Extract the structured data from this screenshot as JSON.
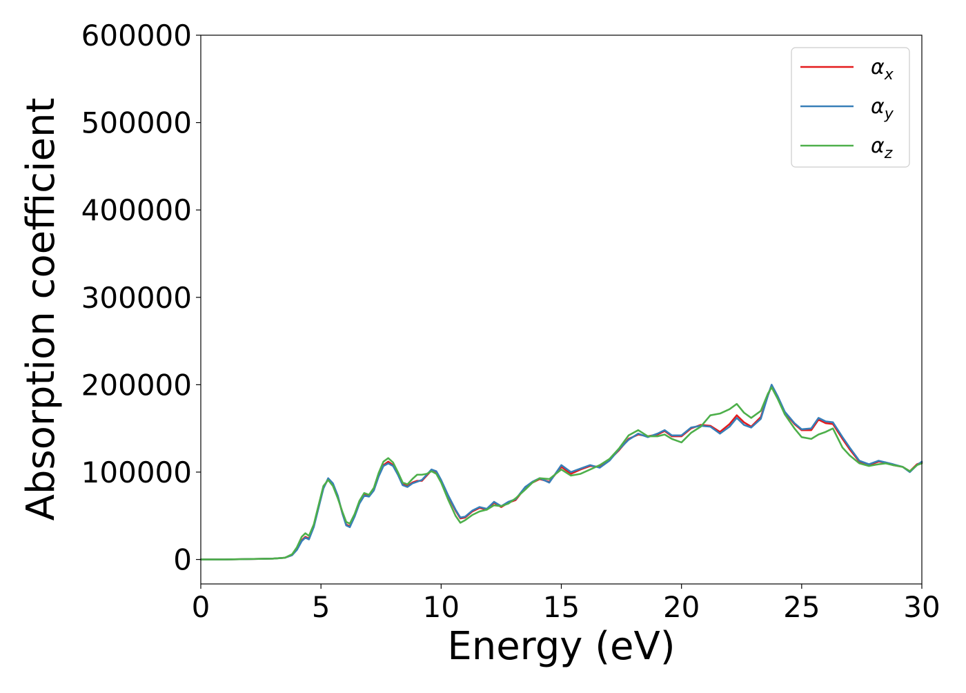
{
  "chart_data": {
    "type": "line",
    "title": "",
    "xlabel": "Energy (eV)",
    "ylabel": "Absorption coefficient",
    "xlim": [
      0,
      30
    ],
    "ylim": [
      -28000,
      600000
    ],
    "xticks": [
      0,
      5,
      10,
      15,
      20,
      25,
      30
    ],
    "xtick_labels": [
      "0",
      "5",
      "10",
      "15",
      "20",
      "25",
      "30"
    ],
    "yticks": [
      0,
      100000,
      200000,
      300000,
      400000,
      500000,
      600000
    ],
    "ytick_labels": [
      "0",
      "100000",
      "200000",
      "300000",
      "400000",
      "500000",
      "600000"
    ],
    "grid": false,
    "legend_position": "top-right",
    "series": [
      {
        "name": "αx",
        "symbol": "α",
        "subscript": "x",
        "color": "#e41a1c",
        "points": [
          [
            0,
            0
          ],
          [
            1,
            0
          ],
          [
            2,
            500
          ],
          [
            3,
            1000
          ],
          [
            3.5,
            2000
          ],
          [
            3.8,
            5000
          ],
          [
            4.0,
            12000
          ],
          [
            4.2,
            22000
          ],
          [
            4.35,
            26000
          ],
          [
            4.5,
            24000
          ],
          [
            4.7,
            38000
          ],
          [
            4.9,
            60000
          ],
          [
            5.1,
            82000
          ],
          [
            5.3,
            92000
          ],
          [
            5.5,
            86000
          ],
          [
            5.7,
            72000
          ],
          [
            5.9,
            52000
          ],
          [
            6.05,
            40000
          ],
          [
            6.2,
            38000
          ],
          [
            6.4,
            50000
          ],
          [
            6.6,
            65000
          ],
          [
            6.8,
            74000
          ],
          [
            7.0,
            73000
          ],
          [
            7.2,
            80000
          ],
          [
            7.4,
            96000
          ],
          [
            7.6,
            108000
          ],
          [
            7.8,
            112000
          ],
          [
            8.0,
            108000
          ],
          [
            8.2,
            98000
          ],
          [
            8.4,
            86000
          ],
          [
            8.6,
            84000
          ],
          [
            8.8,
            88000
          ],
          [
            9.0,
            90000
          ],
          [
            9.2,
            90000
          ],
          [
            9.4,
            96000
          ],
          [
            9.6,
            102000
          ],
          [
            9.8,
            100000
          ],
          [
            10.0,
            90000
          ],
          [
            10.3,
            72000
          ],
          [
            10.6,
            56000
          ],
          [
            10.8,
            47000
          ],
          [
            11.0,
            48000
          ],
          [
            11.3,
            55000
          ],
          [
            11.6,
            59000
          ],
          [
            11.9,
            57000
          ],
          [
            12.2,
            65000
          ],
          [
            12.5,
            60000
          ],
          [
            12.8,
            65000
          ],
          [
            13.1,
            68000
          ],
          [
            13.5,
            82000
          ],
          [
            13.8,
            88000
          ],
          [
            14.1,
            92000
          ],
          [
            14.5,
            89000
          ],
          [
            15.0,
            106000
          ],
          [
            15.4,
            98000
          ],
          [
            15.8,
            103000
          ],
          [
            16.2,
            107000
          ],
          [
            16.6,
            106000
          ],
          [
            17.0,
            114000
          ],
          [
            17.4,
            125000
          ],
          [
            17.8,
            138000
          ],
          [
            18.2,
            143000
          ],
          [
            18.6,
            141000
          ],
          [
            19.0,
            143000
          ],
          [
            19.3,
            147000
          ],
          [
            19.6,
            141000
          ],
          [
            20.0,
            141000
          ],
          [
            20.4,
            150000
          ],
          [
            20.8,
            154000
          ],
          [
            21.2,
            153000
          ],
          [
            21.6,
            146000
          ],
          [
            22.0,
            155000
          ],
          [
            22.3,
            165000
          ],
          [
            22.6,
            157000
          ],
          [
            22.9,
            152000
          ],
          [
            23.3,
            163000
          ],
          [
            23.6,
            188000
          ],
          [
            23.75,
            199000
          ],
          [
            24.0,
            186000
          ],
          [
            24.3,
            168000
          ],
          [
            24.7,
            155000
          ],
          [
            25.0,
            148000
          ],
          [
            25.4,
            148000
          ],
          [
            25.7,
            160000
          ],
          [
            26.0,
            156000
          ],
          [
            26.3,
            155000
          ],
          [
            26.7,
            138000
          ],
          [
            27.0,
            126000
          ],
          [
            27.4,
            112000
          ],
          [
            27.8,
            108000
          ],
          [
            28.2,
            112000
          ],
          [
            28.5,
            111000
          ],
          [
            28.8,
            108000
          ],
          [
            29.2,
            106000
          ],
          [
            29.5,
            101000
          ],
          [
            29.8,
            109000
          ],
          [
            30.0,
            111000
          ]
        ]
      },
      {
        "name": "αy",
        "symbol": "α",
        "subscript": "y",
        "color": "#377eb8",
        "points": [
          [
            0,
            0
          ],
          [
            1,
            0
          ],
          [
            2,
            500
          ],
          [
            3,
            1000
          ],
          [
            3.5,
            2000
          ],
          [
            3.8,
            5000
          ],
          [
            4.0,
            11000
          ],
          [
            4.2,
            21000
          ],
          [
            4.35,
            25000
          ],
          [
            4.5,
            23000
          ],
          [
            4.7,
            37000
          ],
          [
            4.9,
            59000
          ],
          [
            5.1,
            81000
          ],
          [
            5.3,
            93000
          ],
          [
            5.5,
            87000
          ],
          [
            5.7,
            73000
          ],
          [
            5.9,
            52000
          ],
          [
            6.05,
            39000
          ],
          [
            6.2,
            37000
          ],
          [
            6.4,
            49000
          ],
          [
            6.6,
            64000
          ],
          [
            6.8,
            73000
          ],
          [
            7.0,
            72000
          ],
          [
            7.2,
            79000
          ],
          [
            7.4,
            95000
          ],
          [
            7.6,
            107000
          ],
          [
            7.8,
            110000
          ],
          [
            8.0,
            107000
          ],
          [
            8.2,
            97000
          ],
          [
            8.4,
            85000
          ],
          [
            8.6,
            83000
          ],
          [
            8.8,
            87000
          ],
          [
            9.0,
            89000
          ],
          [
            9.2,
            91000
          ],
          [
            9.4,
            97000
          ],
          [
            9.6,
            103000
          ],
          [
            9.8,
            101000
          ],
          [
            10.0,
            91000
          ],
          [
            10.3,
            73000
          ],
          [
            10.6,
            57000
          ],
          [
            10.8,
            48000
          ],
          [
            11.0,
            49000
          ],
          [
            11.3,
            56000
          ],
          [
            11.6,
            60000
          ],
          [
            11.9,
            58000
          ],
          [
            12.2,
            66000
          ],
          [
            12.5,
            61000
          ],
          [
            12.8,
            66000
          ],
          [
            13.1,
            69000
          ],
          [
            13.5,
            83000
          ],
          [
            13.8,
            89000
          ],
          [
            14.1,
            93000
          ],
          [
            14.5,
            88000
          ],
          [
            15.0,
            108000
          ],
          [
            15.4,
            100000
          ],
          [
            15.8,
            104000
          ],
          [
            16.2,
            108000
          ],
          [
            16.6,
            105000
          ],
          [
            17.0,
            113000
          ],
          [
            17.4,
            126000
          ],
          [
            17.8,
            137000
          ],
          [
            18.2,
            144000
          ],
          [
            18.6,
            140000
          ],
          [
            19.0,
            144000
          ],
          [
            19.3,
            148000
          ],
          [
            19.6,
            142000
          ],
          [
            20.0,
            142000
          ],
          [
            20.4,
            151000
          ],
          [
            20.8,
            153000
          ],
          [
            21.2,
            152000
          ],
          [
            21.6,
            144000
          ],
          [
            22.0,
            152000
          ],
          [
            22.3,
            162000
          ],
          [
            22.6,
            154000
          ],
          [
            22.9,
            151000
          ],
          [
            23.3,
            161000
          ],
          [
            23.6,
            188000
          ],
          [
            23.75,
            200000
          ],
          [
            24.0,
            187000
          ],
          [
            24.3,
            169000
          ],
          [
            24.7,
            156000
          ],
          [
            25.0,
            149000
          ],
          [
            25.4,
            150000
          ],
          [
            25.7,
            162000
          ],
          [
            26.0,
            158000
          ],
          [
            26.3,
            157000
          ],
          [
            26.7,
            140000
          ],
          [
            27.0,
            128000
          ],
          [
            27.4,
            113000
          ],
          [
            27.8,
            109000
          ],
          [
            28.2,
            113000
          ],
          [
            28.5,
            111000
          ],
          [
            28.8,
            109000
          ],
          [
            29.2,
            106000
          ],
          [
            29.5,
            100000
          ],
          [
            29.8,
            108000
          ],
          [
            30.0,
            112000
          ]
        ]
      },
      {
        "name": "αz",
        "symbol": "α",
        "subscript": "z",
        "color": "#4daf4a",
        "points": [
          [
            0,
            0
          ],
          [
            1,
            0
          ],
          [
            2,
            500
          ],
          [
            3,
            1000
          ],
          [
            3.5,
            2000
          ],
          [
            3.8,
            6000
          ],
          [
            4.0,
            14000
          ],
          [
            4.2,
            26000
          ],
          [
            4.35,
            30000
          ],
          [
            4.5,
            27000
          ],
          [
            4.7,
            40000
          ],
          [
            4.9,
            62000
          ],
          [
            5.1,
            84000
          ],
          [
            5.3,
            91000
          ],
          [
            5.5,
            84000
          ],
          [
            5.7,
            70000
          ],
          [
            5.9,
            54000
          ],
          [
            6.05,
            43000
          ],
          [
            6.2,
            41000
          ],
          [
            6.4,
            52000
          ],
          [
            6.6,
            67000
          ],
          [
            6.8,
            76000
          ],
          [
            7.0,
            74000
          ],
          [
            7.2,
            82000
          ],
          [
            7.4,
            99000
          ],
          [
            7.6,
            112000
          ],
          [
            7.8,
            116000
          ],
          [
            8.0,
            111000
          ],
          [
            8.2,
            100000
          ],
          [
            8.4,
            88000
          ],
          [
            8.6,
            86000
          ],
          [
            8.8,
            92000
          ],
          [
            9.0,
            97000
          ],
          [
            9.2,
            97000
          ],
          [
            9.4,
            98000
          ],
          [
            9.6,
            101000
          ],
          [
            9.8,
            98000
          ],
          [
            10.0,
            88000
          ],
          [
            10.3,
            68000
          ],
          [
            10.6,
            50000
          ],
          [
            10.8,
            42000
          ],
          [
            11.0,
            45000
          ],
          [
            11.3,
            51000
          ],
          [
            11.6,
            55000
          ],
          [
            11.9,
            57000
          ],
          [
            12.2,
            62000
          ],
          [
            12.5,
            61000
          ],
          [
            12.8,
            64000
          ],
          [
            13.1,
            70000
          ],
          [
            13.5,
            80000
          ],
          [
            13.8,
            88000
          ],
          [
            14.1,
            93000
          ],
          [
            14.5,
            92000
          ],
          [
            15.0,
            103000
          ],
          [
            15.4,
            96000
          ],
          [
            15.8,
            98000
          ],
          [
            16.2,
            103000
          ],
          [
            16.6,
            108000
          ],
          [
            17.0,
            115000
          ],
          [
            17.4,
            127000
          ],
          [
            17.8,
            142000
          ],
          [
            18.2,
            148000
          ],
          [
            18.6,
            141000
          ],
          [
            19.0,
            141000
          ],
          [
            19.3,
            143000
          ],
          [
            19.6,
            138000
          ],
          [
            20.0,
            134000
          ],
          [
            20.4,
            145000
          ],
          [
            20.8,
            152000
          ],
          [
            21.2,
            165000
          ],
          [
            21.6,
            167000
          ],
          [
            22.0,
            172000
          ],
          [
            22.3,
            178000
          ],
          [
            22.6,
            168000
          ],
          [
            22.9,
            162000
          ],
          [
            23.3,
            170000
          ],
          [
            23.6,
            190000
          ],
          [
            23.75,
            197000
          ],
          [
            24.0,
            184000
          ],
          [
            24.3,
            166000
          ],
          [
            24.7,
            150000
          ],
          [
            25.0,
            140000
          ],
          [
            25.4,
            138000
          ],
          [
            25.7,
            143000
          ],
          [
            26.0,
            146000
          ],
          [
            26.3,
            150000
          ],
          [
            26.7,
            128000
          ],
          [
            27.0,
            119000
          ],
          [
            27.4,
            110000
          ],
          [
            27.8,
            107000
          ],
          [
            28.2,
            109000
          ],
          [
            28.5,
            110000
          ],
          [
            28.8,
            108000
          ],
          [
            29.2,
            106000
          ],
          [
            29.5,
            101000
          ],
          [
            29.8,
            108000
          ],
          [
            30.0,
            110000
          ]
        ]
      }
    ]
  }
}
